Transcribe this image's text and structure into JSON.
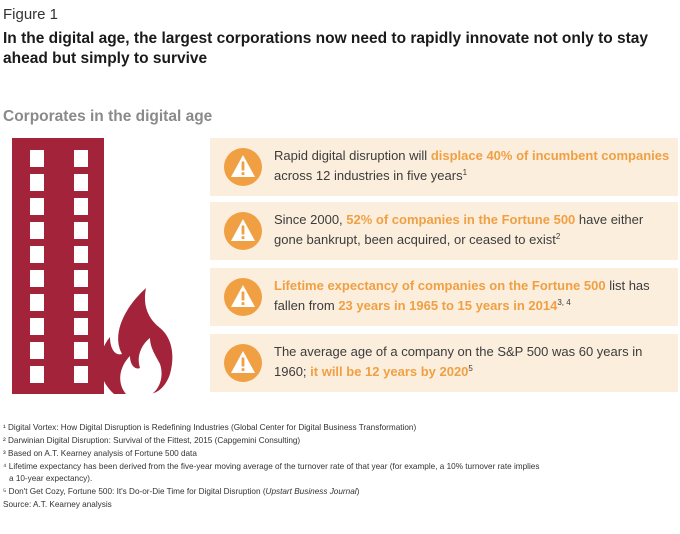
{
  "figure_label": "Figure 1",
  "headline": "In the digital age, the largest corporations now need to rapidly innovate not only to stay ahead but simply to survive",
  "section_title": "Corporates in the digital age",
  "colors": {
    "building": "#a3233a",
    "accent": "#f0a043",
    "card_bg": "#fbeedd"
  },
  "cards": [
    {
      "icon": "warning-icon",
      "t1": "Rapid digital disruption will ",
      "b1": "displace 40% of incumbent companies",
      "t2": " across 12 industries in five years",
      "sup": "1"
    },
    {
      "icon": "warning-icon",
      "t1": "Since 2000, ",
      "b1": "52% of companies in the Fortune 500",
      "t2": " have either gone bankrupt, been acquired, or ceased to exist",
      "sup": "2"
    },
    {
      "icon": "warning-icon",
      "b1": "Lifetime expectancy of companies on the Fortune 500",
      "t1": " list has fallen from ",
      "b2": "23 years in 1965 to 15 years in 2014",
      "sup": "3, 4"
    },
    {
      "icon": "warning-icon",
      "t1": "The average age of a company on the S&P 500 was 60 years in 1960; ",
      "b1": "it will be 12 years by 2020",
      "sup": "5"
    }
  ],
  "footnotes": {
    "n1": "¹ Digital Vortex: How Digital Disruption is Redefining Industries (Global Center for Digital Business Transformation)",
    "n2": "² Darwinian Digital Disruption: Survival of the Fittest, 2015 (Capgemini Consulting)",
    "n3": "³ Based on A.T. Kearney analysis of Fortune 500 data",
    "n4a": "⁴ Lifetime expectancy has been derived from the five-year moving average of the turnover rate of that year (for example, a 10% turnover rate implies",
    "n4b": "a 10-year expectancy).",
    "n5_pre": "⁵ Don't Get Cozy, Fortune 500: It's Do-or-Die Time for Digital Disruption (",
    "n5_italic": "Upstart Business Journal",
    "n5_post": ")",
    "source": "Source: A.T. Kearney analysis"
  }
}
